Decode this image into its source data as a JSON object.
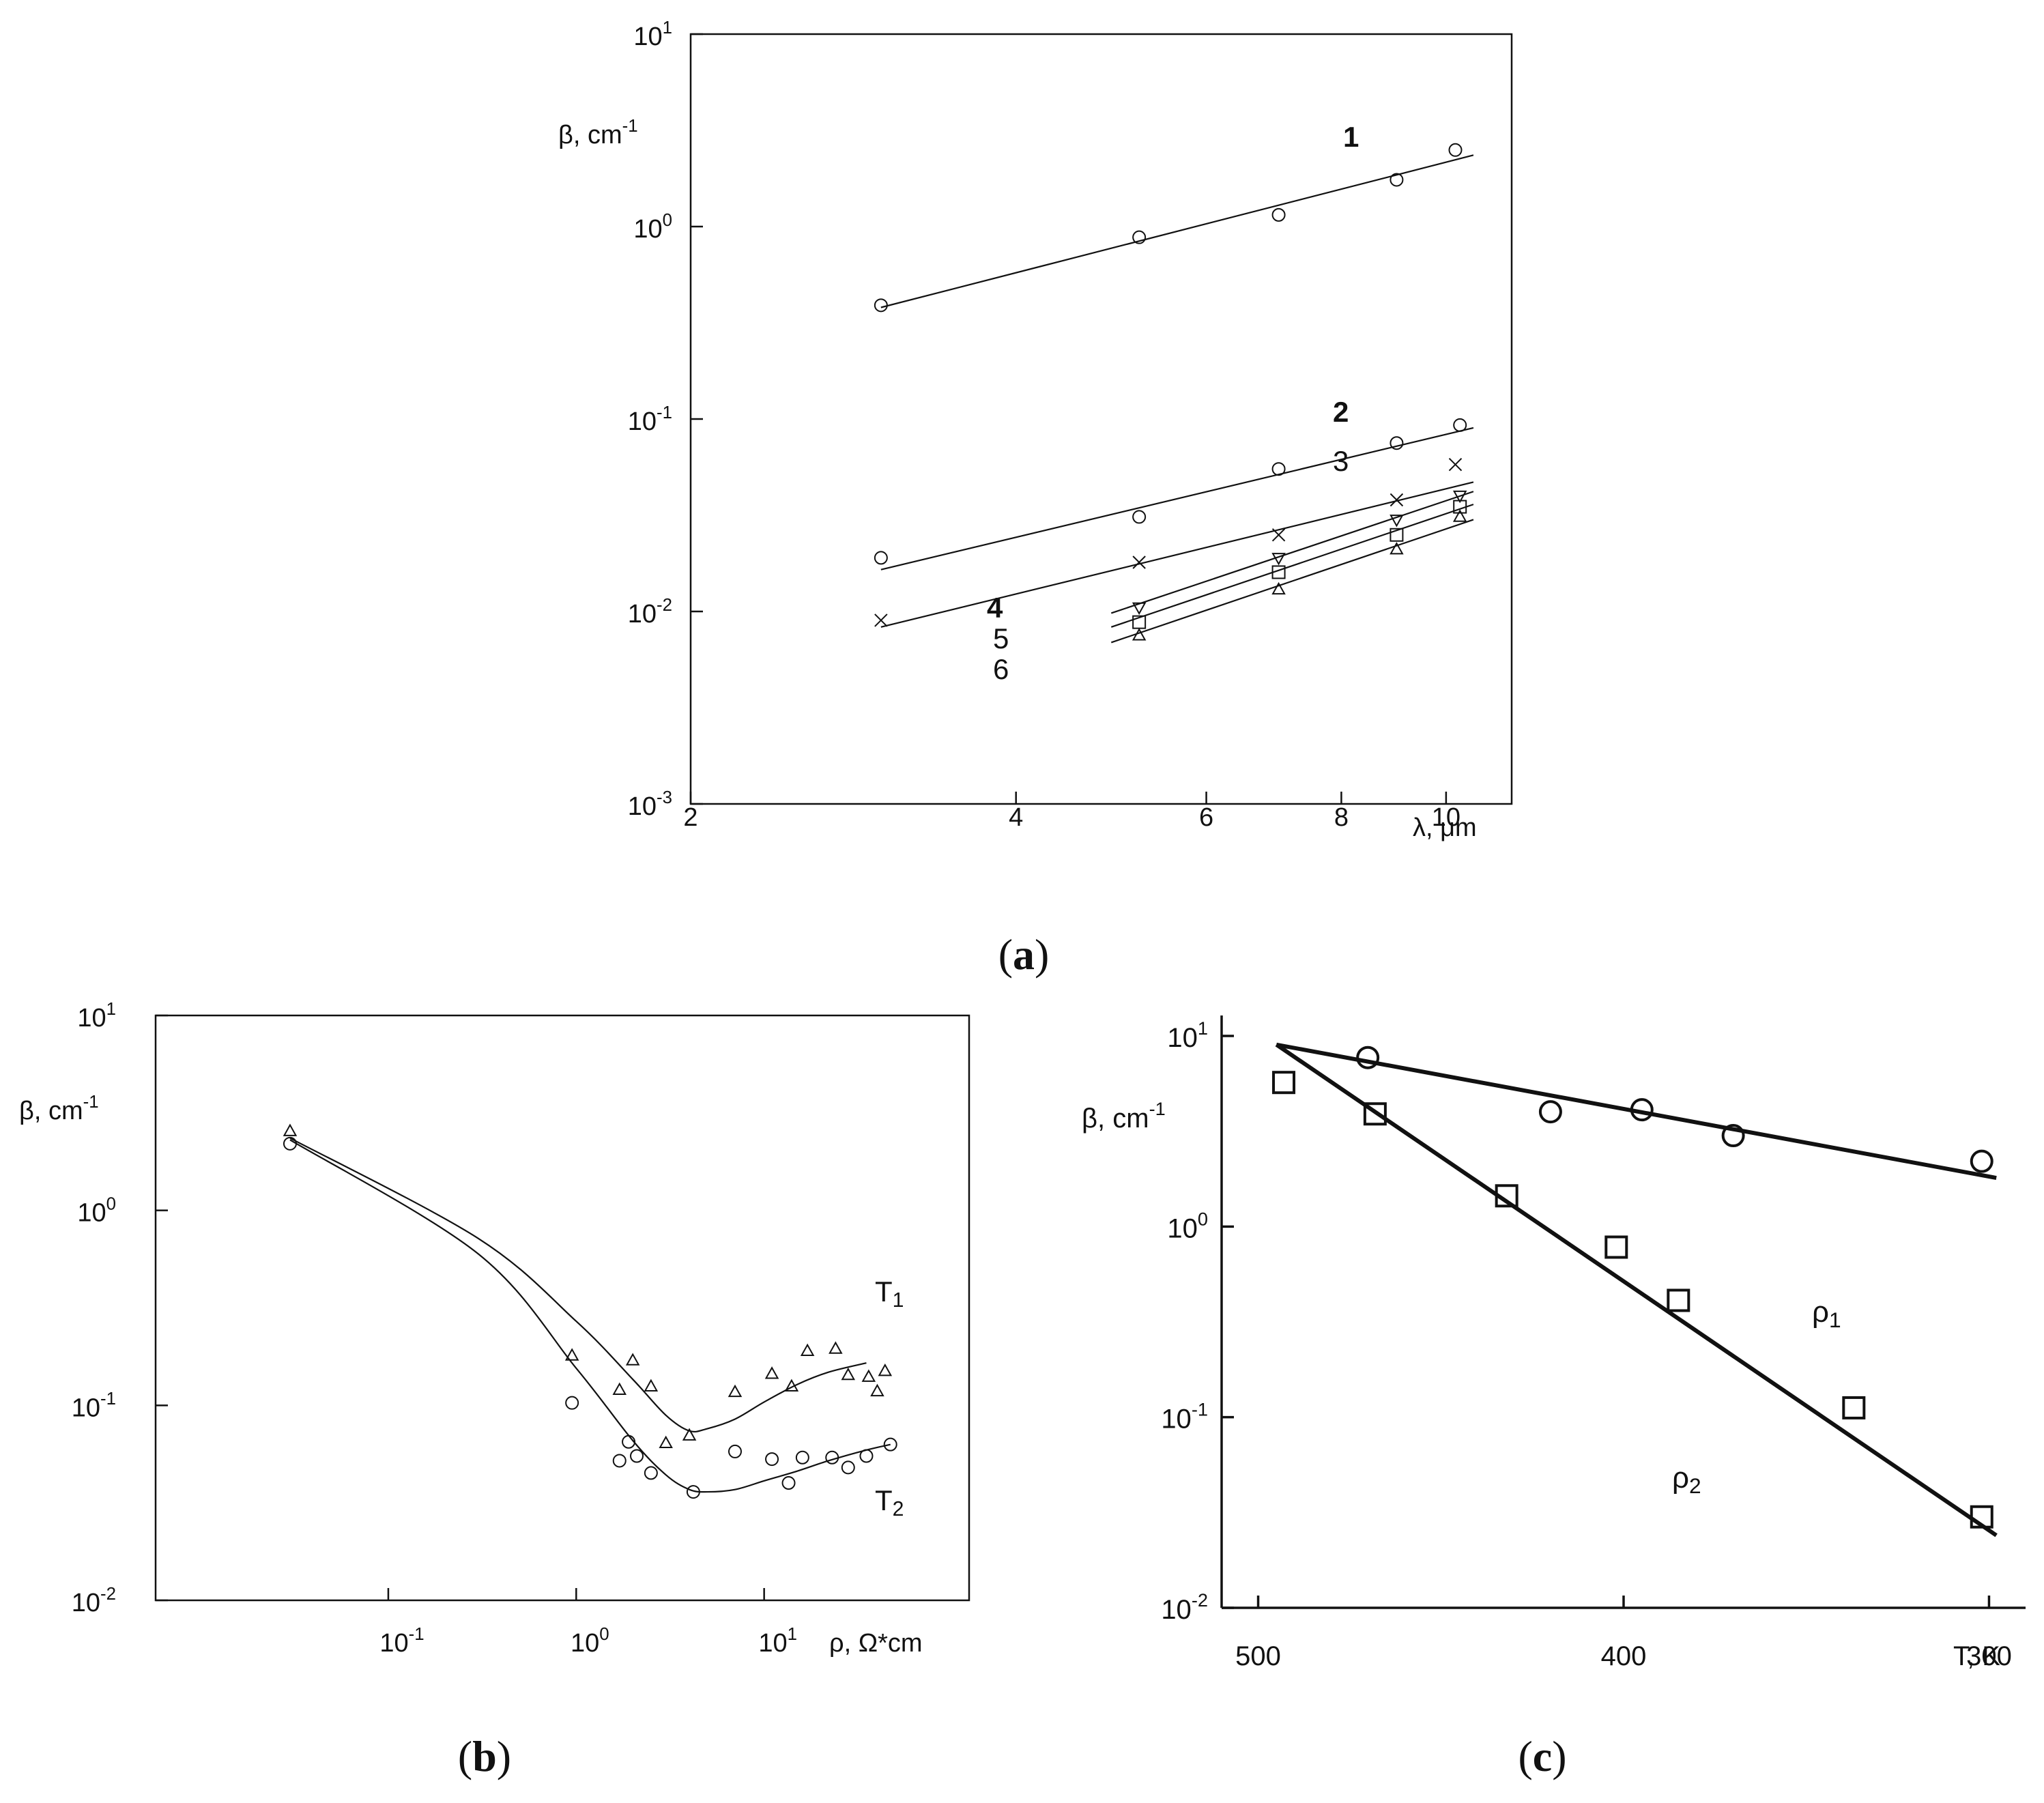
{
  "figure": {
    "ink": "#111111",
    "background": "#ffffff"
  },
  "chart_data": [
    {
      "id": "a",
      "caption": "(a)",
      "type": "scatter",
      "xlabel": "λ, μm",
      "ylabel": "β, cm⁻¹",
      "xscale": "log",
      "yscale": "log",
      "xlim": [
        2,
        11.5
      ],
      "ylim": [
        0.001,
        10
      ],
      "x_ticks": [
        2,
        4,
        6,
        8,
        10
      ],
      "x_tick_labels": [
        "2",
        "4",
        "6",
        "8",
        "10"
      ],
      "y_ticks": [
        0.001,
        0.01,
        0.1,
        1,
        10
      ],
      "y_tick_labels": [
        {
          "base": "10",
          "exp": "-3"
        },
        {
          "base": "10",
          "exp": "-2"
        },
        {
          "base": "10",
          "exp": "-1"
        },
        {
          "base": "10",
          "exp": "0"
        },
        {
          "base": "10",
          "exp": "1"
        }
      ],
      "grid": false,
      "legend": "inline curve numbers",
      "series": [
        {
          "name": "1",
          "marker": "circle",
          "x": [
            3.0,
            5.2,
            7.0,
            9.0,
            10.2
          ],
          "y": [
            0.39,
            0.88,
            1.15,
            1.75,
            2.5
          ],
          "fit": {
            "x": [
              3.0,
              10.6
            ],
            "y": [
              0.38,
              2.35
            ]
          }
        },
        {
          "name": "2",
          "marker": "circle",
          "x": [
            3.0,
            5.2,
            7.0,
            9.0,
            10.3
          ],
          "y": [
            0.019,
            0.031,
            0.055,
            0.075,
            0.093
          ],
          "fit": {
            "x": [
              3.0,
              10.6
            ],
            "y": [
              0.0165,
              0.09
            ]
          }
        },
        {
          "name": "3",
          "marker": "x",
          "x": [
            3.0,
            5.2,
            7.0,
            9.0,
            10.2
          ],
          "y": [
            0.009,
            0.018,
            0.025,
            0.038,
            0.058
          ],
          "fit": {
            "x": [
              3.0,
              10.6
            ],
            "y": [
              0.0083,
              0.047
            ]
          }
        },
        {
          "name": "4",
          "marker": "triangle-down",
          "x": [
            5.2,
            7.0,
            9.0,
            10.3
          ],
          "y": [
            0.0105,
            0.019,
            0.03,
            0.04
          ],
          "fit": {
            "x": [
              4.9,
              10.6
            ],
            "y": [
              0.0098,
              0.042
            ]
          }
        },
        {
          "name": "5",
          "marker": "square",
          "x": [
            5.2,
            7.0,
            9.0,
            10.3
          ],
          "y": [
            0.0088,
            0.016,
            0.025,
            0.035
          ],
          "fit": {
            "x": [
              4.9,
              10.6
            ],
            "y": [
              0.0083,
              0.036
            ]
          }
        },
        {
          "name": "6",
          "marker": "triangle-up",
          "x": [
            5.2,
            7.0,
            9.0,
            10.3
          ],
          "y": [
            0.0075,
            0.013,
            0.021,
            0.031
          ],
          "fit": {
            "x": [
              4.9,
              10.6
            ],
            "y": [
              0.0069,
              0.03
            ]
          }
        }
      ]
    },
    {
      "id": "b",
      "caption": "(b)",
      "type": "scatter",
      "xlabel": "ρ, Ω*cm",
      "ylabel": "β, cm⁻¹",
      "xscale": "log",
      "yscale": "log",
      "xlim": [
        0.011,
        100
      ],
      "ylim": [
        0.01,
        10
      ],
      "x_ticks": [
        0.1,
        1,
        10
      ],
      "x_tick_labels": [
        {
          "base": "10",
          "exp": "-1"
        },
        {
          "base": "10",
          "exp": "0"
        },
        {
          "base": "10",
          "exp": "1"
        }
      ],
      "y_ticks": [
        0.01,
        0.1,
        1,
        10
      ],
      "y_tick_labels": [
        {
          "base": "10",
          "exp": "-2"
        },
        {
          "base": "10",
          "exp": "-1"
        },
        {
          "base": "10",
          "exp": "0"
        },
        {
          "base": "10",
          "exp": "1"
        }
      ],
      "grid": false,
      "legend": "inline labels",
      "series": [
        {
          "name": "T₁",
          "marker": "triangle-up",
          "x": [
            0.03,
            0.95,
            1.7,
            2.0,
            2.5,
            3.0,
            4.0,
            7.0,
            11.0,
            14.0,
            17.0,
            24.0,
            28.0,
            36.0,
            40.0,
            44.0
          ],
          "y": [
            2.55,
            0.18,
            0.12,
            0.17,
            0.125,
            0.064,
            0.07,
            0.117,
            0.145,
            0.125,
            0.19,
            0.195,
            0.143,
            0.14,
            0.118,
            0.15
          ],
          "curve": {
            "x": [
              0.03,
              0.3,
              1.0,
              2.0,
              3.0,
              4.0,
              5.0,
              7.0,
              10.0,
              15.0,
              22.0,
              35.0
            ],
            "y": [
              2.35,
              0.72,
              0.27,
              0.136,
              0.089,
              0.074,
              0.076,
              0.085,
              0.104,
              0.128,
              0.148,
              0.165
            ]
          }
        },
        {
          "name": "T₂",
          "marker": "circle",
          "x": [
            0.03,
            0.95,
            1.7,
            1.9,
            2.1,
            2.5,
            4.2,
            7.0,
            11.0,
            13.5,
            16.0,
            23.0,
            28.0,
            35.0,
            47.0
          ],
          "y": [
            2.2,
            0.103,
            0.052,
            0.065,
            0.055,
            0.045,
            0.036,
            0.058,
            0.053,
            0.04,
            0.054,
            0.054,
            0.048,
            0.055,
            0.063
          ],
          "curve": {
            "x": [
              0.03,
              0.3,
              1.0,
              2.0,
              3.0,
              4.0,
              5.0,
              7.0,
              10.0,
              15.0,
              22.0,
              35.0,
              47.0
            ],
            "y": [
              2.3,
              0.6,
              0.155,
              0.066,
              0.044,
              0.037,
              0.036,
              0.037,
              0.041,
              0.046,
              0.052,
              0.059,
              0.063
            ]
          }
        }
      ]
    },
    {
      "id": "c",
      "caption": "(c)",
      "type": "scatter",
      "xlabel": "T, K",
      "ylabel": "β, cm⁻¹",
      "xscale": "linear (reversed)",
      "yscale": "log",
      "xlim": [
        510,
        290
      ],
      "ylim": [
        0.01,
        10
      ],
      "x_ticks": [
        500,
        400,
        300
      ],
      "x_tick_labels": [
        "500",
        "400",
        "300"
      ],
      "y_ticks": [
        0.01,
        0.1,
        1,
        10
      ],
      "y_tick_labels": [
        {
          "base": "10",
          "exp": "-2"
        },
        {
          "base": "10",
          "exp": "-1"
        },
        {
          "base": "10",
          "exp": "0"
        },
        {
          "base": "10",
          "exp": "1"
        }
      ],
      "grid": false,
      "legend": "inline labels",
      "series": [
        {
          "name": "ρ₁",
          "marker": "circle",
          "x": [
            470,
            420,
            395,
            370,
            302
          ],
          "y": [
            7.7,
            4.0,
            4.1,
            3.0,
            2.2
          ],
          "fit": {
            "x": [
              495,
              298
            ],
            "y": [
              9.0,
              1.8
            ]
          }
        },
        {
          "name": "ρ₂",
          "marker": "square",
          "x": [
            493,
            468,
            432,
            402,
            385,
            337,
            302
          ],
          "y": [
            5.7,
            3.9,
            1.45,
            0.78,
            0.41,
            0.112,
            0.03
          ],
          "fit": {
            "x": [
              495,
              298
            ],
            "y": [
              9.0,
              0.024
            ]
          }
        }
      ]
    }
  ]
}
